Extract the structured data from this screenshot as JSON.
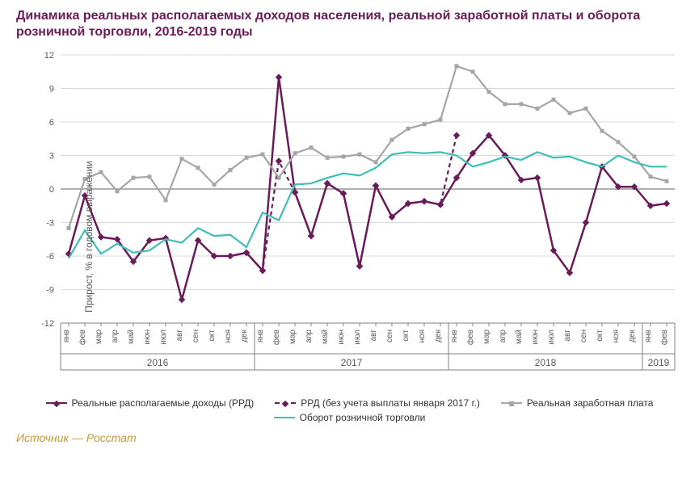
{
  "title": "Динамика реальных располагаемых доходов населения, реальной заработной платы и оборота розничной торговли, 2016-2019 годы",
  "source": "Источник — Росстат",
  "ylabel": "Прирост, % в годовом выражении",
  "chart": {
    "type": "line",
    "background_color": "#ffffff",
    "grid_color": "#d9d9d9",
    "axis_color": "#808080",
    "zero_line_color": "#808080",
    "tick_font_size": 11,
    "tick_color": "#595959",
    "ylim": [
      -12,
      12
    ],
    "ytick_step": 3,
    "months": [
      "янв",
      "фев",
      "мар",
      "апр",
      "май",
      "июн",
      "июл",
      "авг",
      "сен",
      "окт",
      "ноя",
      "дек",
      "янв",
      "фев",
      "мар",
      "апр",
      "май",
      "июн",
      "июл",
      "авг",
      "сен",
      "окт",
      "ноя",
      "дек",
      "янв",
      "фев",
      "мар",
      "апр",
      "май",
      "июн",
      "июл",
      "авг",
      "сен",
      "окт",
      "ноя",
      "дек",
      "янв",
      "фев"
    ],
    "year_groups": [
      {
        "label": "2016",
        "start": 0,
        "end": 11
      },
      {
        "label": "2017",
        "start": 12,
        "end": 23
      },
      {
        "label": "2018",
        "start": 24,
        "end": 35
      },
      {
        "label": "2019",
        "start": 36,
        "end": 37
      }
    ],
    "series": [
      {
        "key": "rrd",
        "label": "Реальные располагаемые доходы (РРД)",
        "color": "#6a1b5a",
        "width": 2.5,
        "dash": "",
        "marker": "diamond",
        "values": [
          -5.8,
          -0.6,
          -4.3,
          -4.5,
          -6.5,
          -4.6,
          -4.4,
          -9.9,
          -4.6,
          -6.0,
          -6.0,
          -5.7,
          -7.3,
          10.0,
          -0.3,
          -4.2,
          0.5,
          -0.4,
          -6.9,
          0.3,
          -2.5,
          -1.3,
          -1.1,
          -1.4,
          1.0,
          3.2,
          4.8,
          3.0,
          0.8,
          1.0,
          -5.5,
          -7.5,
          -3.0,
          2.0,
          0.2,
          0.2,
          -1.5,
          -1.3
        ]
      },
      {
        "key": "rrd_adj",
        "label": "РРД (без учета выплаты января 2017 г.)",
        "color": "#6a1b5a",
        "width": 2.2,
        "dash": "5,4",
        "marker": "diamond",
        "range": [
          11,
          24
        ],
        "values": [
          -5.7,
          -7.3,
          2.5,
          -0.3,
          -4.2,
          0.5,
          -0.4,
          -6.9,
          0.3,
          -2.5,
          -1.3,
          -1.1,
          -1.4,
          4.8
        ]
      },
      {
        "key": "wage",
        "label": "Реальная заработная плата",
        "color": "#a6a6a6",
        "width": 2.2,
        "dash": "",
        "marker": "square",
        "values": [
          -3.5,
          0.9,
          1.5,
          -0.2,
          1.0,
          1.1,
          -1.0,
          2.7,
          1.9,
          0.4,
          1.7,
          2.8,
          3.1,
          1.0,
          3.2,
          3.7,
          2.8,
          2.9,
          3.1,
          2.4,
          4.4,
          5.4,
          5.8,
          6.2,
          11.0,
          10.5,
          8.7,
          7.6,
          7.6,
          7.2,
          8.0,
          6.8,
          7.2,
          5.2,
          4.2,
          2.9,
          1.1,
          0.7
        ]
      },
      {
        "key": "retail",
        "label": "Оборот розничной торговли",
        "color": "#3fbdb8",
        "width": 2.2,
        "dash": "",
        "marker": "none",
        "values": [
          -6.2,
          -3.7,
          -5.8,
          -4.9,
          -5.7,
          -5.5,
          -4.5,
          -4.8,
          -3.5,
          -4.2,
          -4.1,
          -5.2,
          -2.1,
          -2.8,
          0.4,
          0.5,
          1.0,
          1.4,
          1.2,
          1.9,
          3.1,
          3.3,
          3.2,
          3.3,
          3.0,
          2.0,
          2.4,
          2.9,
          2.6,
          3.3,
          2.8,
          2.9,
          2.4,
          2.0,
          3.0,
          2.4,
          2.0,
          2.0
        ]
      }
    ]
  }
}
